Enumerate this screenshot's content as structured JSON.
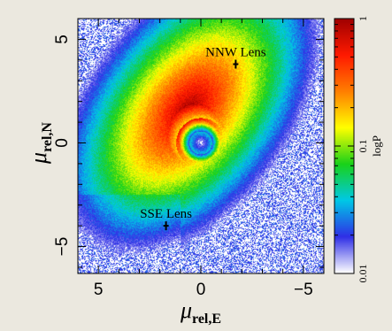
{
  "chart_data": {
    "type": "heatmap",
    "title": "",
    "xlabel": {
      "base": "μ",
      "sub": "rel,E"
    },
    "ylabel": {
      "base": "μ",
      "sub": "rel,N"
    },
    "xlim": [
      6,
      -6
    ],
    "ylim": [
      -6.3,
      6
    ],
    "xticks": [
      {
        "value": 5,
        "label": "5"
      },
      {
        "value": 0,
        "label": "0"
      },
      {
        "value": -5,
        "label": "−5"
      }
    ],
    "yticks": [
      {
        "value": 5,
        "label": "5"
      },
      {
        "value": 0,
        "label": "0"
      },
      {
        "value": -5,
        "label": "−5"
      }
    ],
    "colorbar": {
      "label": "logP",
      "scale": "log",
      "range": [
        0.01,
        1
      ],
      "ticks": [
        {
          "value": 1,
          "label": "1"
        },
        {
          "value": 0.1,
          "label": "0.1"
        },
        {
          "value": 0.01,
          "label": "0.01"
        }
      ],
      "colors": [
        "#ffffff",
        "#2f2fe6",
        "#00c8e6",
        "#19d219",
        "#ffff00",
        "#ff7f00",
        "#ff1a00",
        "#a00000"
      ]
    },
    "annotations": [
      {
        "label": "NNW Lens",
        "x": -1.7,
        "y": 3.8
      },
      {
        "label": "SSE Lens",
        "x": 1.7,
        "y": -4.0
      }
    ],
    "distribution": {
      "peak_center": [
        0.6,
        1.6
      ],
      "ring_hole_center": [
        0,
        0
      ],
      "description_of_levels": "highest probability in red region around centre, decreasing outward through orange, yellow, green, cyan, blue to white at edges"
    }
  }
}
